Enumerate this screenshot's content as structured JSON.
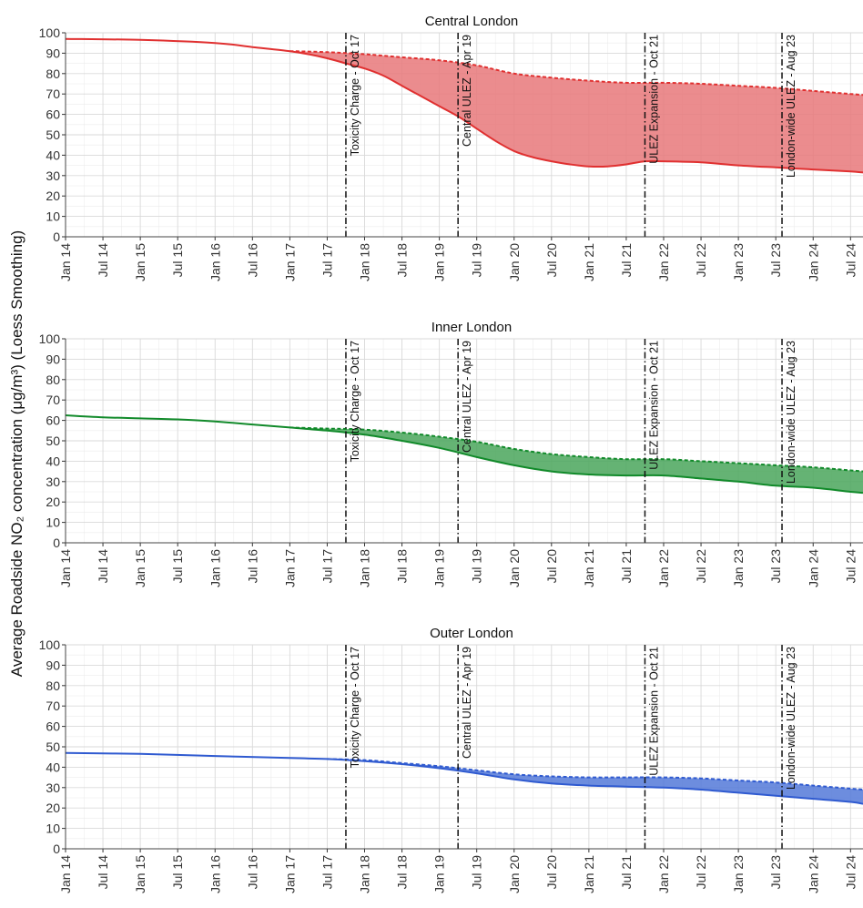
{
  "chart_data": {
    "type": "area",
    "ylabel": "Average Roadside NO₂ concentration (μg/m³) (Loess Smoothing)",
    "ylim": [
      0,
      100
    ],
    "yticks": [
      0,
      10,
      20,
      30,
      40,
      50,
      60,
      70,
      80,
      90,
      100
    ],
    "xlim": [
      "2014-01",
      "2024-09"
    ],
    "xticks": [
      "Jan 14",
      "Jul 14",
      "Jan 15",
      "Jul 15",
      "Jan 16",
      "Jul 16",
      "Jan 17",
      "Jul 17",
      "Jan 18",
      "Jul 18",
      "Jan 19",
      "Jul 19",
      "Jan 20",
      "Jul 20",
      "Jan 21",
      "Jul 21",
      "Jan 22",
      "Jul 22",
      "Jan 23",
      "Jul 23",
      "Jan 24",
      "Jul 24"
    ],
    "grid": true,
    "events": [
      {
        "label": "Toxicity Charge - Oct 17",
        "date": "2017-10"
      },
      {
        "label": "Central ULEZ - Apr 19",
        "date": "2019-04"
      },
      {
        "label": "ULEZ Expansion - Oct 21",
        "date": "2021-10"
      },
      {
        "label": "London-wide ULEZ - Aug 23",
        "date": "2023-08"
      }
    ],
    "panels": [
      {
        "title": "Central London",
        "color": "#e03030",
        "fill": "#e8787a",
        "observed": {
          "x": [
            "2014-01",
            "2015-01",
            "2016-01",
            "2016-07",
            "2017-01",
            "2017-04",
            "2017-07",
            "2017-10",
            "2018-01",
            "2018-04",
            "2018-07",
            "2018-10",
            "2019-01",
            "2019-04",
            "2019-07",
            "2019-10",
            "2020-01",
            "2020-04",
            "2020-07",
            "2020-10",
            "2021-01",
            "2021-04",
            "2021-07",
            "2021-10",
            "2022-01",
            "2022-07",
            "2023-01",
            "2023-07",
            "2024-01",
            "2024-07",
            "2024-09"
          ],
          "y": [
            97,
            96.5,
            95,
            93,
            91,
            89.5,
            87.5,
            85,
            82.5,
            79,
            74,
            69,
            64,
            59,
            53,
            47,
            42,
            39,
            37,
            35.5,
            34.5,
            34.5,
            35.5,
            37,
            37,
            36.5,
            35,
            34,
            33,
            32,
            31.5
          ]
        },
        "counterfactual": {
          "x": [
            "2017-01",
            "2017-07",
            "2018-01",
            "2018-07",
            "2019-01",
            "2019-07",
            "2020-01",
            "2020-07",
            "2021-01",
            "2021-07",
            "2022-01",
            "2022-07",
            "2023-01",
            "2023-07",
            "2024-01",
            "2024-07",
            "2024-09"
          ],
          "y": [
            91,
            90.5,
            89.5,
            88,
            86.5,
            84,
            80,
            78,
            76.5,
            75.5,
            75.5,
            75,
            74,
            73,
            71.5,
            70,
            69.5
          ]
        }
      },
      {
        "title": "Inner London",
        "color": "#118a2a",
        "fill": "#4aa65c",
        "observed": {
          "x": [
            "2014-01",
            "2014-07",
            "2015-01",
            "2015-07",
            "2016-01",
            "2016-07",
            "2017-01",
            "2017-07",
            "2018-01",
            "2018-07",
            "2019-01",
            "2019-07",
            "2020-01",
            "2020-07",
            "2021-01",
            "2021-07",
            "2022-01",
            "2022-07",
            "2023-01",
            "2023-07",
            "2024-01",
            "2024-07",
            "2024-09"
          ],
          "y": [
            62.5,
            61.5,
            61,
            60.5,
            59.5,
            58,
            56.5,
            55,
            53,
            50,
            46.5,
            42,
            38,
            35,
            33.5,
            33,
            33,
            31.5,
            30,
            28,
            27,
            25,
            24.5
          ]
        },
        "counterfactual": {
          "x": [
            "2017-01",
            "2017-07",
            "2018-01",
            "2018-07",
            "2019-01",
            "2019-07",
            "2020-01",
            "2020-07",
            "2021-01",
            "2021-07",
            "2022-01",
            "2022-07",
            "2023-01",
            "2023-07",
            "2024-01",
            "2024-07",
            "2024-09"
          ],
          "y": [
            56.5,
            56,
            55.5,
            54,
            52,
            49.5,
            46,
            43.5,
            42,
            41,
            41,
            40,
            39,
            38,
            37,
            35.5,
            35
          ]
        }
      },
      {
        "title": "Outer London",
        "color": "#2f5ad0",
        "fill": "#5379d8",
        "observed": {
          "x": [
            "2014-01",
            "2015-01",
            "2016-01",
            "2017-01",
            "2017-07",
            "2018-01",
            "2018-07",
            "2019-01",
            "2019-07",
            "2020-01",
            "2020-07",
            "2021-01",
            "2021-07",
            "2022-01",
            "2022-07",
            "2023-01",
            "2023-07",
            "2024-01",
            "2024-07",
            "2024-09"
          ],
          "y": [
            47,
            46.5,
            45.5,
            44.5,
            44,
            43,
            41.5,
            39.5,
            37,
            34,
            32,
            31,
            30.5,
            30,
            29,
            27.5,
            26,
            24.5,
            23,
            22
          ]
        },
        "counterfactual": {
          "x": [
            "2017-07",
            "2018-01",
            "2018-07",
            "2019-01",
            "2019-07",
            "2020-01",
            "2020-07",
            "2021-01",
            "2021-07",
            "2022-01",
            "2022-07",
            "2023-01",
            "2023-07",
            "2024-01",
            "2024-07",
            "2024-09"
          ],
          "y": [
            44,
            43.5,
            42,
            40.5,
            38.5,
            36.5,
            35.5,
            35,
            35,
            35,
            34.5,
            33.5,
            32.5,
            31,
            29.5,
            29
          ]
        }
      }
    ]
  }
}
